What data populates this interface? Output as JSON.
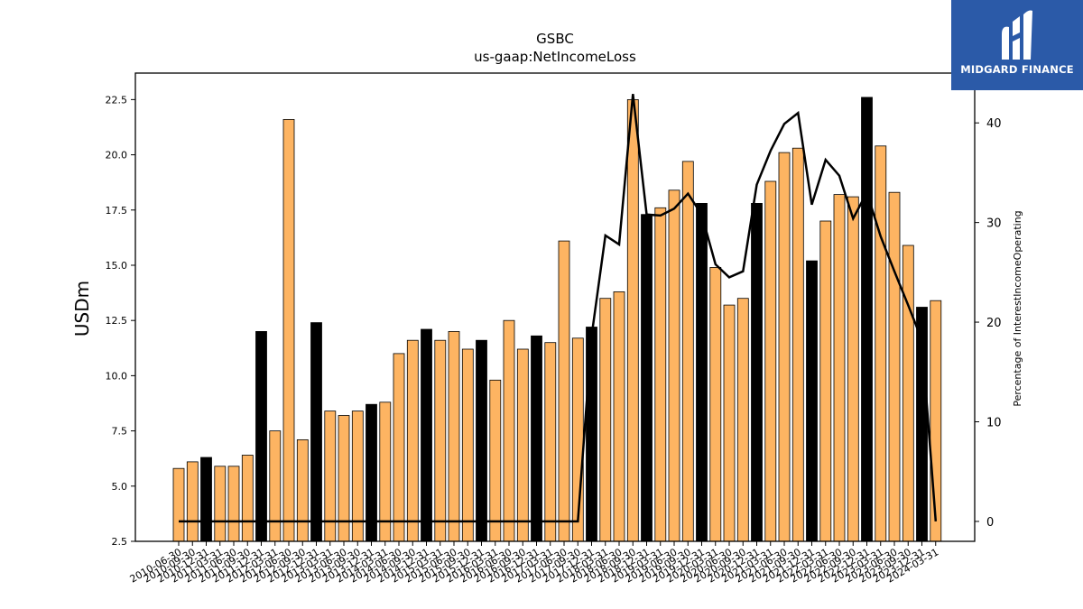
{
  "chart_data": {
    "type": "bar",
    "title": "GSBC",
    "subtitle": "us-gaap:NetIncomeLoss",
    "ylabel": "USDm",
    "y2label": "Percentage of InterestIncomeOperating",
    "ylim": [
      2.5,
      23.7
    ],
    "y2lim": [
      -2,
      45
    ],
    "yticks": [
      "2.5",
      "5.0",
      "7.5",
      "10.0",
      "12.5",
      "15.0",
      "17.5",
      "20.0",
      "22.5"
    ],
    "y2ticks": [
      "0",
      "10",
      "20",
      "30",
      "40"
    ],
    "bar_color": "#fdb462",
    "highlight_color": "#000000",
    "line_color": "#000000",
    "categories": [
      "2010-06-30",
      "2010-09-30",
      "2010-12-31",
      "2011-03-31",
      "2011-06-30",
      "2011-09-30",
      "2011-12-31",
      "2012-03-31",
      "2012-06-30",
      "2012-09-30",
      "2012-12-31",
      "2013-03-31",
      "2013-06-30",
      "2013-09-30",
      "2013-12-31",
      "2014-03-31",
      "2014-06-30",
      "2014-09-30",
      "2014-12-31",
      "2015-03-31",
      "2015-06-30",
      "2015-09-30",
      "2015-12-31",
      "2016-03-31",
      "2016-06-30",
      "2016-09-30",
      "2016-12-31",
      "2017-03-31",
      "2017-06-30",
      "2017-09-30",
      "2017-12-31",
      "2018-03-31",
      "2018-06-30",
      "2018-09-30",
      "2018-12-31",
      "2019-03-31",
      "2019-06-30",
      "2019-09-30",
      "2019-12-31",
      "2020-03-31",
      "2020-06-30",
      "2020-09-30",
      "2020-12-31",
      "2021-03-31",
      "2021-06-30",
      "2021-09-30",
      "2021-12-31",
      "2022-03-31",
      "2022-06-30",
      "2022-09-30",
      "2022-12-31",
      "2023-03-31",
      "2023-06-30",
      "2023-09-30",
      "2023-12-31",
      "2024-03-31"
    ],
    "tick_labels": [
      "2010-06-30",
      "2010-09-30",
      "2010-12-31",
      "2011-03-31",
      "2011-06-30",
      "2011-09-30",
      "2011-12-31",
      "2012-03-31",
      "2012-06-30",
      "2012-09-30",
      "2012-12-31",
      "2013-03-31",
      "2013-06-30",
      "2013-09-30",
      "2013-12-31",
      "2014-03-31",
      "2014-06-30",
      "2014-09-30",
      "2014-12-31",
      "2015-03-31",
      "2015-06-30",
      "2015-09-30",
      "2015-12-31",
      "2016-03-31",
      "2016-06-30",
      "2016-09-30",
      "2016-12-31",
      "2017-03-31",
      "2017-06-30",
      "2017-09-30",
      "2017-12-31",
      "2018-03-31",
      "2018-06-30",
      "2018-09-30",
      "2018-12-31",
      "2019-03-31",
      "2019-06-30",
      "2019-09-30",
      "2019-12-31",
      "2020-03-31",
      "2020-06-30",
      "2020-09-30",
      "2020-12-31",
      "2021-03-31",
      "2021-06-30",
      "2021-09-30",
      "2021-12-31",
      "2022-03-31",
      "2022-06-30",
      "2022-09-30",
      "2022-12-31",
      "2023-03-31",
      "2023-06-30",
      "2023-09-30",
      "2023-12-31",
      "2024-03-31"
    ],
    "values": [
      5.8,
      6.1,
      6.3,
      5.9,
      5.9,
      6.4,
      12.0,
      7.5,
      21.6,
      7.1,
      12.4,
      8.4,
      8.2,
      8.4,
      8.7,
      8.8,
      11.0,
      11.6,
      12.1,
      11.6,
      12.0,
      11.2,
      11.6,
      9.8,
      12.5,
      11.2,
      11.8,
      11.5,
      16.1,
      11.7,
      12.2,
      13.5,
      13.8,
      22.5,
      17.3,
      17.6,
      18.4,
      19.7,
      17.8,
      14.9,
      13.2,
      13.5,
      17.8,
      18.8,
      20.1,
      20.3,
      15.2,
      17.0,
      18.2,
      18.1,
      22.6,
      20.4,
      18.3,
      15.9,
      13.1,
      13.4
    ],
    "highlight": [
      2,
      6,
      10,
      14,
      18,
      22,
      26,
      30,
      34,
      38,
      42,
      46,
      50,
      54
    ],
    "line_values": [
      0,
      0,
      0,
      0,
      0,
      0,
      0,
      0,
      0,
      0,
      0,
      0,
      0,
      0,
      0,
      0,
      0,
      0,
      0,
      0,
      0,
      0,
      0,
      0,
      0,
      0,
      0,
      0,
      0,
      0,
      18.6,
      28.7,
      27.8,
      42.9,
      30.8,
      30.7,
      31.4,
      32.9,
      30.8,
      25.8,
      24.5,
      25.1,
      33.8,
      37.2,
      39.9,
      41.0,
      31.8,
      36.3,
      34.7,
      30.4,
      33.0,
      28.6,
      25.1,
      21.7,
      18.2,
      0
    ],
    "grid": false,
    "legend": "none"
  },
  "logo": {
    "text": "MIDGARD FINANCE"
  }
}
